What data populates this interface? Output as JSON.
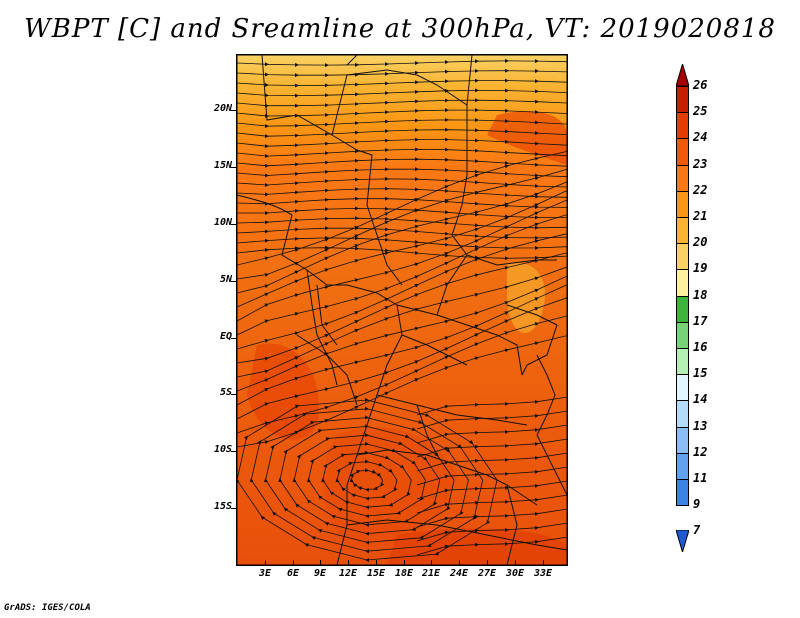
{
  "title": "WBPT [C] and Sreamline at 300hPa, VT: 2019020818",
  "footer": "GrADS: IGES/COLA",
  "lat_labels": [
    "20N",
    "15N",
    "10N",
    "5N",
    "EQ",
    "5S",
    "10S",
    "15S"
  ],
  "lon_labels": [
    "3E",
    "6E",
    "9E",
    "12E",
    "15E",
    "18E",
    "21E",
    "24E",
    "27E",
    "30E",
    "33E"
  ],
  "colorbar": {
    "levels": [
      "26",
      "25",
      "24",
      "23",
      "22",
      "21",
      "20",
      "19",
      "18",
      "17",
      "16",
      "15",
      "14",
      "13",
      "12",
      "11",
      "9",
      "7"
    ],
    "colors": [
      "#a50000",
      "#c81e00",
      "#e63c00",
      "#f05a0a",
      "#fa7814",
      "#fa9614",
      "#fab432",
      "#fad264",
      "#fff0a0",
      "#3cb43c",
      "#78d278",
      "#b4f0b4",
      "#e1f5ff",
      "#b4dcfa",
      "#8cbef5",
      "#64a0f0",
      "#3c82e6",
      "#1e5ad2"
    ]
  },
  "wind_field": {
    "variable": "WBPT",
    "units": "C",
    "level": "300hPa",
    "valid_time": "2019020818",
    "cyclone_center": {
      "lon": "15E",
      "lat": "13S"
    }
  }
}
